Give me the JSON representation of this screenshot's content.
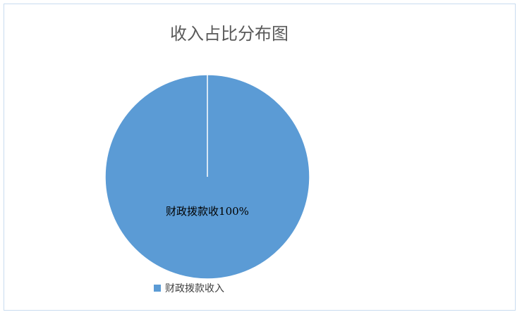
{
  "chart_data": {
    "type": "pie",
    "title": "收入占比分布图",
    "slices": [
      {
        "name": "财政拨款收入",
        "value": 100,
        "color": "#5b9bd5"
      }
    ],
    "data_label": "财政拨款收100%",
    "legend_position": "bottom"
  }
}
